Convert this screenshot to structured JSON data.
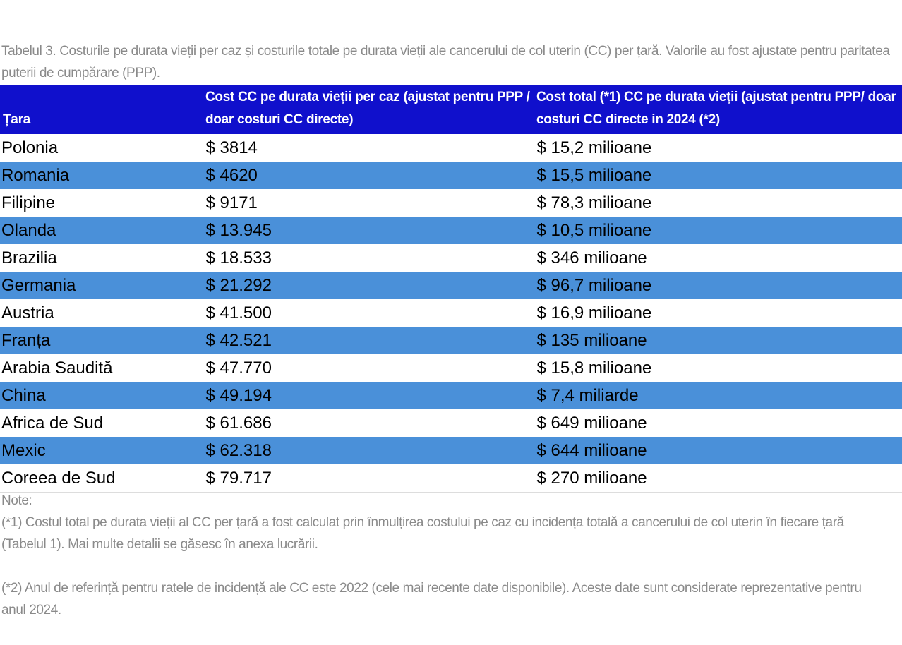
{
  "caption": "Tabelul 3. Costurile pe durata vieții per caz și costurile totale pe durata vieții ale cancerului de col uterin (CC) per țară. Valorile au fost ajustate pentru paritatea puterii de cumpărare (PPP).",
  "table": {
    "headers": [
      "Țara",
      "Cost CC pe durata vieții per caz (ajustat pentru PPP / doar costuri CC directe)",
      "Cost total (*1) CC pe durata vieții (ajustat pentru PPP/ doar costuri CC directe in 2024 (*2)"
    ],
    "rows": [
      [
        "Polonia",
        "$ 3814",
        "$ 15,2 milioane"
      ],
      [
        "Romania",
        "$ 4620",
        "$ 15,5 milioane"
      ],
      [
        "Filipine",
        "$ 9171",
        "$ 78,3 milioane"
      ],
      [
        "Olanda",
        "$ 13.945",
        "$ 10,5 milioane"
      ],
      [
        "Brazilia",
        "$ 18.533",
        "$ 346 milioane"
      ],
      [
        "Germania",
        "$ 21.292",
        "$ 96,7 milioane"
      ],
      [
        "Austria",
        "$ 41.500",
        "$ 16,9 milioane"
      ],
      [
        "Franța",
        "$ 42.521",
        "$ 135 milioane"
      ],
      [
        "Arabia Saudită",
        "$ 47.770",
        "$ 15,8 milioane"
      ],
      [
        "China",
        "$ 49.194",
        "$ 7,4 miliarde"
      ],
      [
        "Africa de Sud",
        "$ 61.686",
        "$ 649 milioane"
      ],
      [
        "Mexic",
        "$ 62.318",
        "$ 644 milioane"
      ],
      [
        "Coreea de Sud",
        "$ 79.717",
        "$ 270 milioane"
      ]
    ]
  },
  "notes": {
    "title": "Note:",
    "items": [
      "(*1) Costul total pe durata vieții al CC per țară a fost calculat prin înmulțirea costului pe caz cu incidența totală a cancerului de col uterin în fiecare țară (Tabelul 1). Mai multe detalii se găsesc în anexa lucrării.",
      "(*2) Anul de referință pentru ratele de incidență ale CC este 2022 (cele mai recente date disponibile). Aceste date sunt considerate reprezentative pentru anul 2024."
    ]
  }
}
